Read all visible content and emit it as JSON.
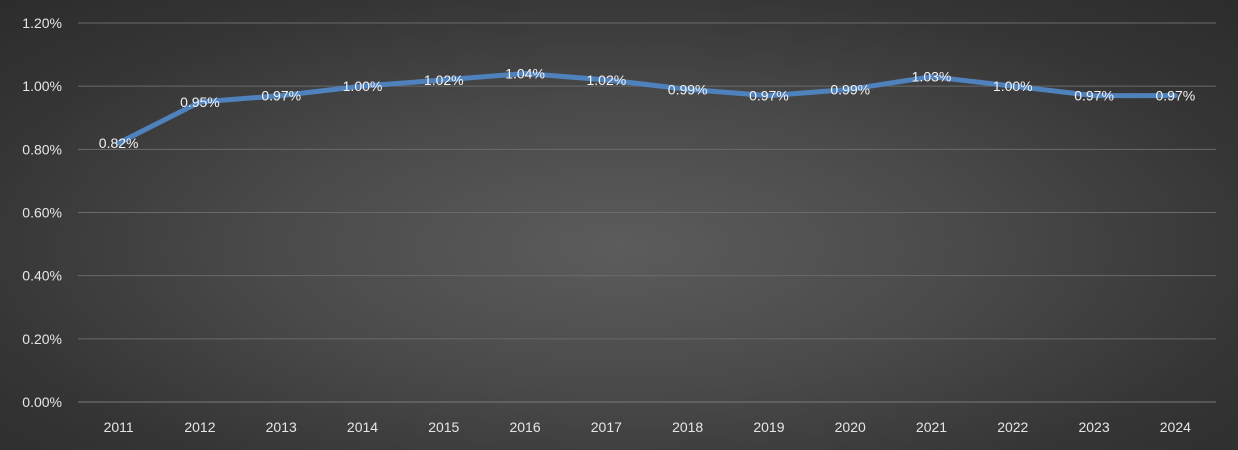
{
  "chart_data": {
    "type": "line",
    "title": "",
    "xlabel": "",
    "ylabel": "",
    "categories": [
      "2011",
      "2012",
      "2013",
      "2014",
      "2015",
      "2016",
      "2017",
      "2018",
      "2019",
      "2020",
      "2021",
      "2022",
      "2023",
      "2024"
    ],
    "series": [
      {
        "values": [
          0.82,
          0.95,
          0.97,
          1.0,
          1.02,
          1.04,
          1.02,
          0.99,
          0.97,
          0.99,
          1.03,
          1.0,
          0.97,
          0.97
        ],
        "data_labels": [
          "0.82%",
          "0.95%",
          "0.97%",
          "1.00%",
          "1.02%",
          "1.04%",
          "1.02%",
          "0.99%",
          "0.97%",
          "0.99%",
          "1.03%",
          "1.00%",
          "0.97%",
          "0.97%"
        ],
        "color": "#4f81bd"
      }
    ],
    "ylim": [
      0,
      1.2
    ],
    "y_ticks": [
      0,
      0.2,
      0.4,
      0.6,
      0.8,
      1.0,
      1.2
    ],
    "y_tick_labels": [
      "0.00%",
      "0.20%",
      "0.40%",
      "0.60%",
      "0.80%",
      "1.00%",
      "1.20%"
    ],
    "grid": true,
    "legend": "none",
    "background": "#4a4a4a"
  }
}
